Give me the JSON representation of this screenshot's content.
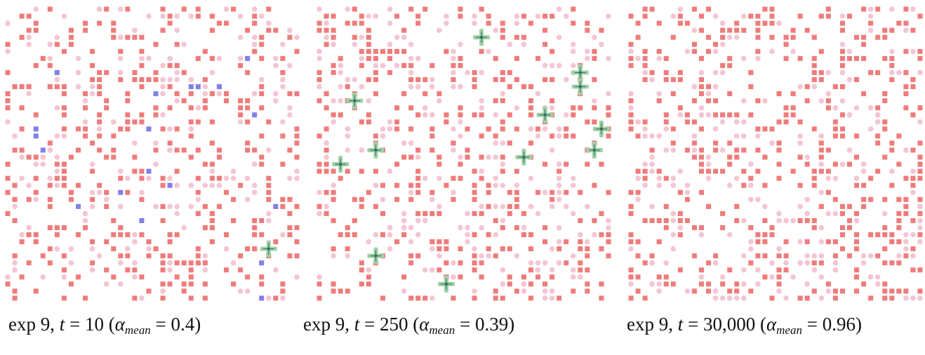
{
  "panels": [
    {
      "caption": {
        "prefix": "exp 9, ",
        "t_symbol": "t",
        "t_value": " = 10 (",
        "alpha_symbol": "α",
        "alpha_sub": "mean",
        "alpha_value": " = 0.4)"
      },
      "grid_size": 42,
      "seed": 9001,
      "red_density": 0.19,
      "pink_density": 0.11,
      "blue_cells": [
        [
          7,
          9
        ],
        [
          34,
          7
        ],
        [
          26,
          11
        ],
        [
          27,
          11
        ],
        [
          21,
          12
        ],
        [
          30,
          11
        ],
        [
          35,
          15
        ],
        [
          4,
          17
        ],
        [
          20,
          17
        ],
        [
          4,
          18
        ],
        [
          5,
          20
        ],
        [
          20,
          23
        ],
        [
          16,
          26
        ],
        [
          23,
          25
        ],
        [
          10,
          28
        ],
        [
          38,
          28
        ],
        [
          19,
          30
        ],
        [
          36,
          36
        ],
        [
          36,
          41
        ]
      ],
      "green_agents": [
        [
          37,
          34
        ]
      ],
      "colors": {
        "red": "#ef7b7b",
        "pink": "#f3c6d2",
        "blue": "#8080e6",
        "green": "#9fd1a4",
        "green_dark": "#2f6e64"
      }
    },
    {
      "caption": {
        "prefix": "exp 9, ",
        "t_symbol": "t",
        "t_value": " = 250 (",
        "alpha_symbol": "α",
        "alpha_sub": "mean",
        "alpha_value": " = 0.39)"
      },
      "grid_size": 42,
      "seed": 2507,
      "red_density": 0.19,
      "pink_density": 0.12,
      "blue_cells": [],
      "green_agents": [
        [
          23,
          4
        ],
        [
          37,
          9
        ],
        [
          37,
          11
        ],
        [
          5,
          13
        ],
        [
          32,
          15
        ],
        [
          40,
          17
        ],
        [
          8,
          20
        ],
        [
          29,
          21
        ],
        [
          39,
          20
        ],
        [
          3,
          22
        ],
        [
          8,
          35
        ],
        [
          18,
          39
        ]
      ],
      "colors": {
        "red": "#ef7b7b",
        "pink": "#f3c6d2",
        "blue": "#8080e6",
        "green": "#9fd1a4",
        "green_dark": "#2f6e64"
      }
    },
    {
      "caption": {
        "prefix": "exp 9, ",
        "t_symbol": "t",
        "t_value": " = 30,000 (",
        "alpha_symbol": "α",
        "alpha_sub": "mean",
        "alpha_value": " = 0.96)"
      },
      "grid_size": 42,
      "seed": 30000,
      "red_density": 0.2,
      "pink_density": 0.12,
      "blue_cells": [],
      "green_agents": [],
      "colors": {
        "red": "#ef7b7b",
        "pink": "#f3c6d2",
        "blue": "#8080e6",
        "green": "#9fd1a4",
        "green_dark": "#2f6e64"
      }
    }
  ]
}
